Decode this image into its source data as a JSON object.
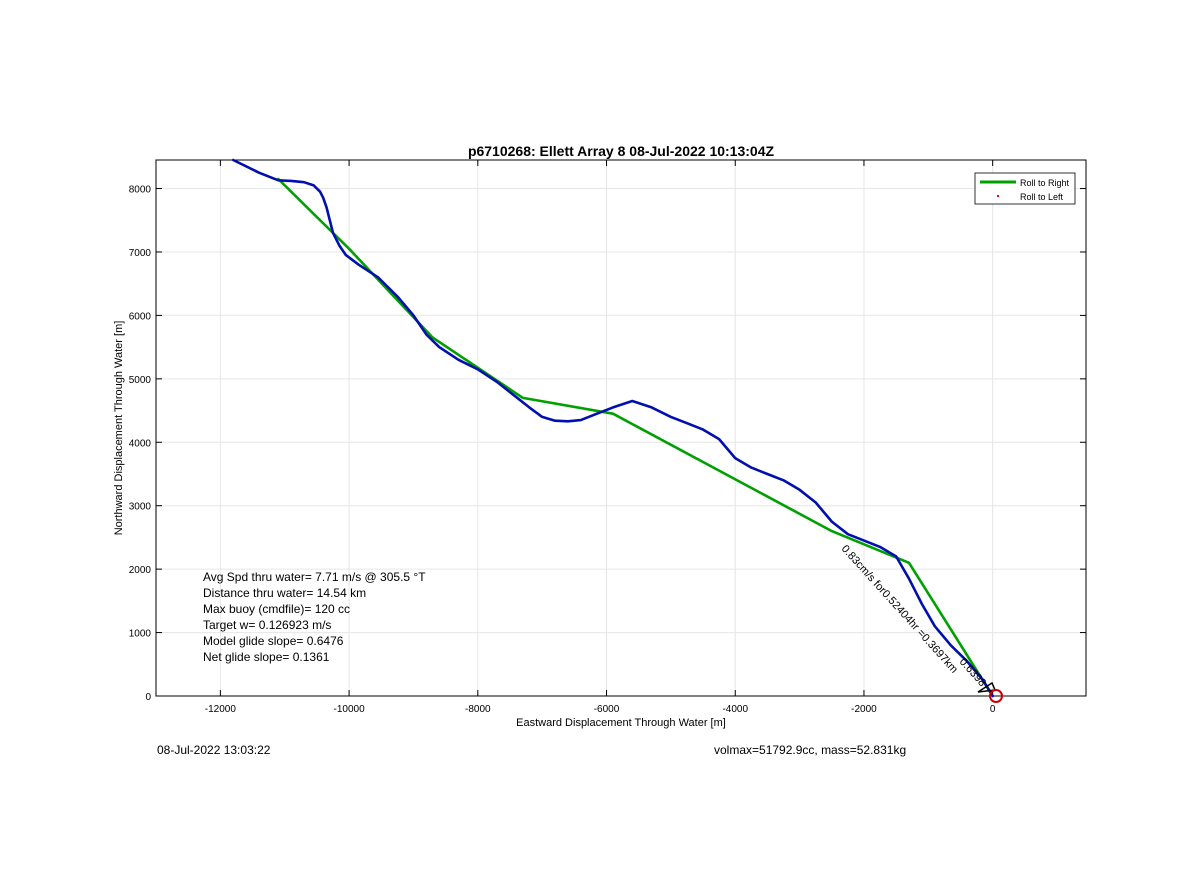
{
  "chart_data": {
    "type": "line",
    "title": "p6710268: Ellett Array 8 08-Jul-2022 10:13:04Z",
    "xlabel": "Eastward Displacement Through Water [m]",
    "ylabel": "Northward Displacement Through Water [m]",
    "xlim": [
      -13000,
      1450
    ],
    "ylim": [
      0,
      8450
    ],
    "xticks": [
      -12000,
      -10000,
      -8000,
      -6000,
      -4000,
      -2000,
      0
    ],
    "yticks": [
      0,
      1000,
      2000,
      3000,
      4000,
      5000,
      6000,
      7000,
      8000
    ],
    "grid": true,
    "legend_position": "top-right",
    "series": [
      {
        "name": "Roll to Right",
        "color": "#00a000",
        "x": [
          0,
          -1300,
          -2500,
          -5900,
          -7300,
          -8700,
          -10000,
          -11100
        ],
        "y": [
          0,
          2100,
          2600,
          4450,
          4700,
          5650,
          7050,
          8150
        ]
      },
      {
        "name": "Roll to Left",
        "color": "#ff0000",
        "x": [],
        "y": []
      },
      {
        "color": "#0010b0",
        "x": [
          0,
          -150,
          -400,
          -650,
          -900,
          -1100,
          -1300,
          -1500,
          -1750,
          -2000,
          -2250,
          -2500,
          -2750,
          -3000,
          -3250,
          -3500,
          -3750,
          -4000,
          -4250,
          -4500,
          -4750,
          -5000,
          -5300,
          -5600,
          -5900,
          -6150,
          -6400,
          -6600,
          -6800,
          -7000,
          -7200,
          -7450,
          -7700,
          -8000,
          -8300,
          -8600,
          -8800,
          -9000,
          -9250,
          -9550,
          -9850,
          -10050,
          -10150,
          -10250,
          -10300,
          -10350,
          -10400,
          -10450,
          -10550,
          -10700,
          -10900,
          -11100,
          -11400,
          -11800
        ],
        "y": [
          0,
          250,
          550,
          800,
          1100,
          1450,
          1850,
          2200,
          2350,
          2450,
          2550,
          2750,
          3050,
          3250,
          3400,
          3500,
          3600,
          3750,
          4050,
          4200,
          4300,
          4400,
          4550,
          4650,
          4550,
          4450,
          4350,
          4330,
          4340,
          4400,
          4550,
          4750,
          4950,
          5150,
          5300,
          5500,
          5700,
          6000,
          6300,
          6600,
          6800,
          6950,
          7100,
          7300,
          7500,
          7700,
          7850,
          7950,
          8050,
          8100,
          8120,
          8130,
          8250,
          8450
        ]
      }
    ],
    "annotations": {
      "stats": [
        "Avg Spd thru water=  7.71 m/s @ 305.5 °T",
        "Distance thru water= 14.54 km",
        "Max buoy (cmdfile)= 120 cc",
        "Target w= 0.126923 m/s",
        "Model glide slope= 0.6476",
        "Net glide slope= 0.1361"
      ],
      "rotated_label": "0.83cm/s for0.52404hr =0.3697km",
      "overlap_label": "0.6398"
    }
  },
  "footer": {
    "timestamp": "08-Jul-2022 13:03:22",
    "vol_mass": "volmax=51792.9cc, mass=52.831kg"
  }
}
